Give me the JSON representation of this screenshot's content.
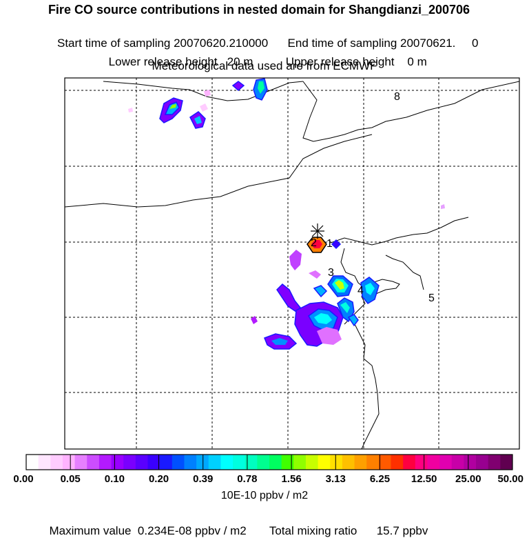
{
  "title": "Fire CO source contributions in nested domain for Shangdianzi_200706",
  "line1": {
    "start_label": "Start time of sampling 20070620.210000",
    "end_label": "End time of sampling 20070621.     0"
  },
  "line2": {
    "lower_label": "Lower release height   20 m",
    "upper_label": "Upper release height    0 m"
  },
  "line3": "Meteorological data used are from ECMWF",
  "map": {
    "labels": [
      "8",
      "2",
      "1",
      "3",
      "4",
      "5"
    ],
    "receptor": "receptor-star"
  },
  "colorbar": {
    "tick_labels": [
      "0.00",
      "0.05",
      "0.10",
      "0.20",
      "0.39",
      "0.78",
      "1.56",
      "3.13",
      "6.25",
      "12.50",
      "25.00",
      "50.00"
    ],
    "colors": [
      "#ffffff",
      "#ffe6ff",
      "#ffccff",
      "#ffb3ff",
      "#e680ff",
      "#cc4dff",
      "#b31aff",
      "#9900ff",
      "#7a00ff",
      "#5a00ff",
      "#3a00ff",
      "#1a1aff",
      "#0050ff",
      "#0080ff",
      "#00a8ff",
      "#00d0ff",
      "#00ffff",
      "#00ffe0",
      "#00ffc0",
      "#00ff90",
      "#00ff60",
      "#40ff00",
      "#90ff00",
      "#c8ff00",
      "#ffff00",
      "#ffe000",
      "#ffc000",
      "#ffa000",
      "#ff8000",
      "#ff5a00",
      "#ff3000",
      "#ff0040",
      "#ff0080",
      "#f000a0",
      "#e000b0",
      "#c800a8",
      "#b000a0",
      "#980090",
      "#800070",
      "#600050"
    ],
    "units": "10E-10 ppbv / m2"
  },
  "footer": {
    "max_label": "Maximum value  0.234E-08 ppbv / m2",
    "total_label": "Total mixing ratio      15.7 ppbv"
  }
}
